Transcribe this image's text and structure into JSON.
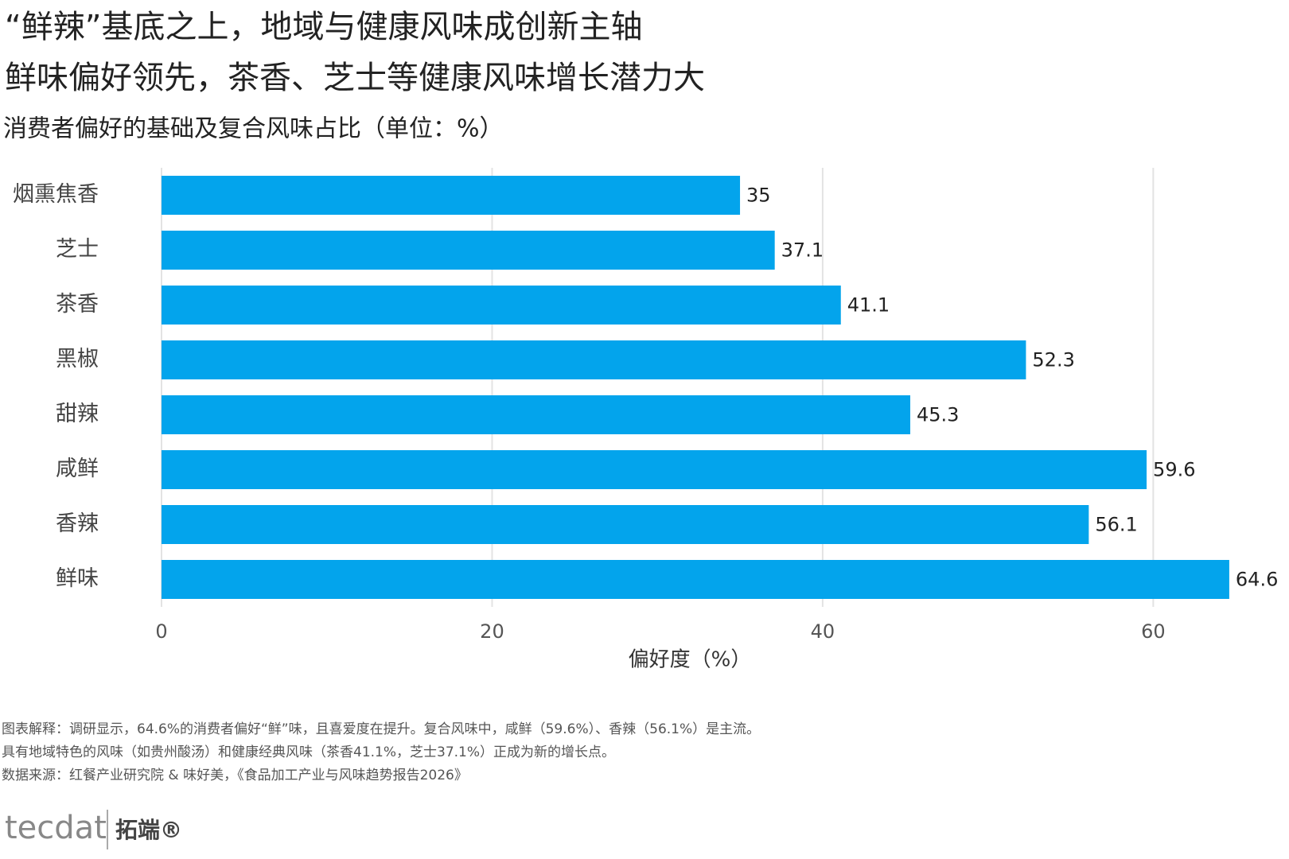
{
  "chart_data": {
    "type": "bar",
    "orientation": "horizontal",
    "title": [
      "“鲜辣”基底之上，地域与健康风味成创新主轴",
      "鲜味偏好领先，茶香、芝士等健康风味增长潜力大"
    ],
    "subtitle": "消费者偏好的基础及复合风味占比（单位：%）",
    "categories": [
      "烟熏焦香",
      "芝士",
      "茶香",
      "黑椒",
      "甜辣",
      "咸鲜",
      "香辣",
      "鲜味"
    ],
    "values": [
      35,
      37.1,
      41.1,
      52.3,
      45.3,
      59.6,
      56.1,
      64.6
    ],
    "color": "#03a4ec",
    "xlabel": "偏好度（%）",
    "xlim": [
      0,
      66
    ],
    "xticks": [
      0,
      20,
      40,
      60
    ],
    "grid": true,
    "notes": [
      "图表解释：调研显示，64.6%的消费者偏好“鲜”味，且喜爱度在提升。复合风味中，咸鲜（59.6%）、香辣（56.1%）是主流。",
      "具有地域特色的风味（如贵州酸汤）和健康经典风味（茶香41.1%，芝士37.1%）正成为新的增长点。",
      "数据来源：红餐产业研究院 & 味好美，《食品加工产业与风味趋势报告2026》"
    ],
    "logo": [
      "tecdat",
      "拓端®"
    ]
  }
}
